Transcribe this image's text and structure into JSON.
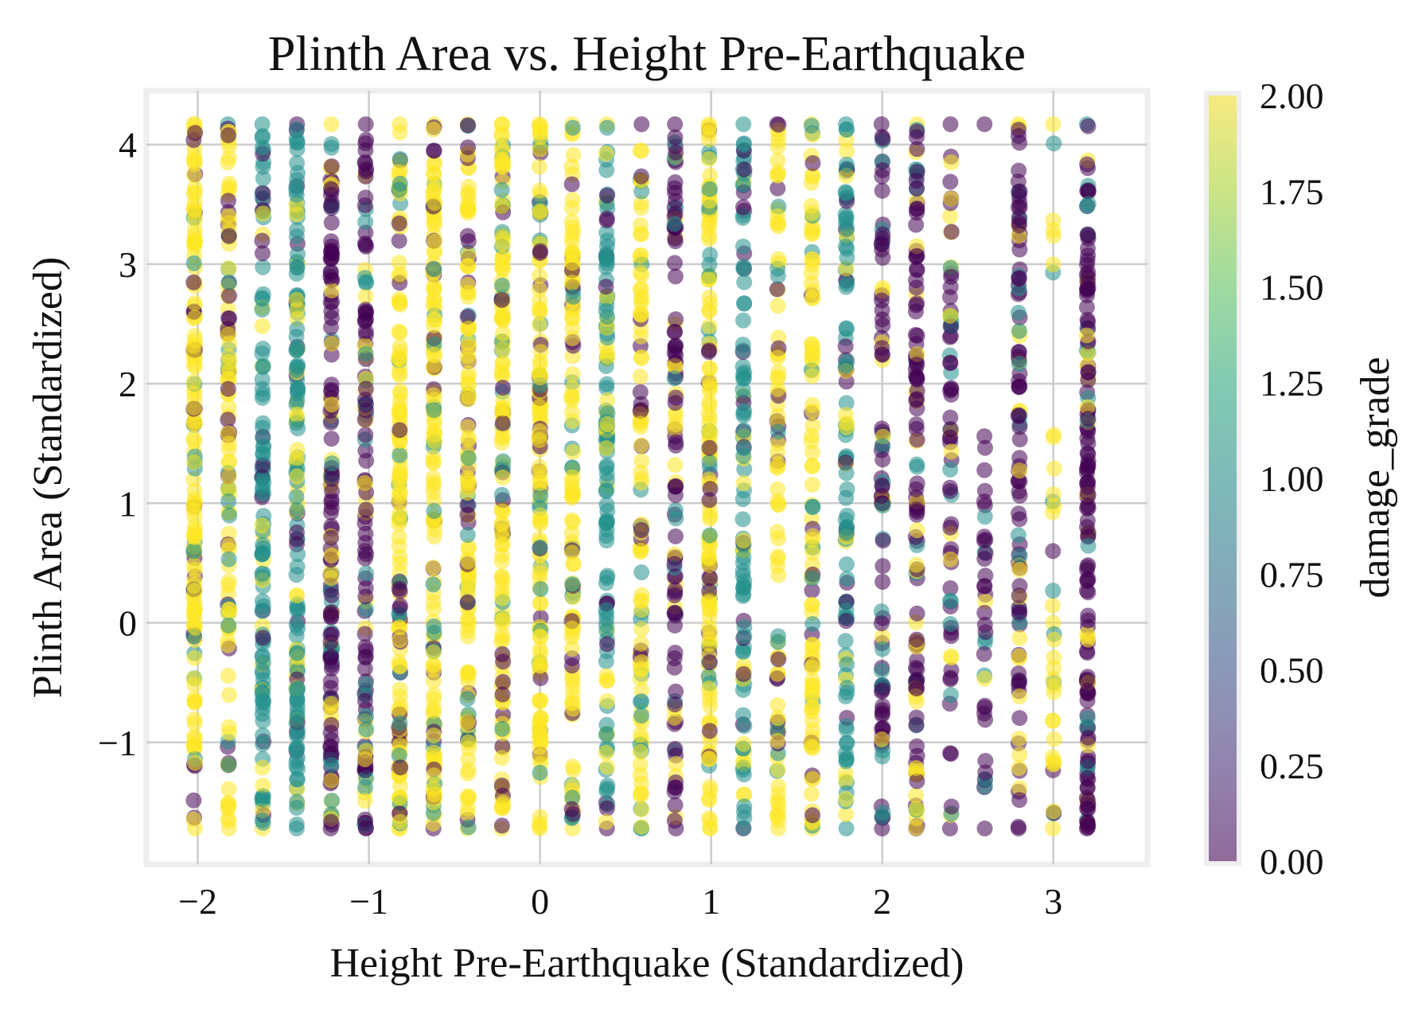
{
  "chart_data": {
    "type": "scatter",
    "title": "Plinth Area vs. Height Pre-Earthquake",
    "xlabel": "Height Pre-Earthquake (Standardized)",
    "ylabel": "Plinth Area (Standardized)",
    "xlim": [
      -2.3,
      3.55
    ],
    "ylim": [
      -2.02,
      4.45
    ],
    "xticks": [
      -2,
      -1,
      0,
      1,
      2,
      3
    ],
    "xtick_labels": [
      "−2",
      "−1",
      "0",
      "1",
      "2",
      "3"
    ],
    "yticks": [
      -1,
      0,
      1,
      2,
      3,
      4
    ],
    "ytick_labels": [
      "−1",
      "0",
      "1",
      "2",
      "3",
      "4"
    ],
    "grid": true,
    "alpha": 0.55,
    "colormap": "viridis",
    "colorbar": {
      "label": "damage_grade",
      "range": [
        0,
        2
      ],
      "ticks": [
        0,
        0.25,
        0.5,
        0.75,
        1,
        1.25,
        1.5,
        1.75,
        2
      ],
      "tick_labels": [
        "0.00",
        "0.25",
        "0.50",
        "0.75",
        "1.00",
        "1.25",
        "1.50",
        "1.75",
        "2.00"
      ]
    },
    "x_levels": [
      -2.02,
      -1.82,
      -1.62,
      -1.42,
      -1.22,
      -1.02,
      -0.82,
      -0.62,
      -0.42,
      -0.22,
      0.0,
      0.19,
      0.39,
      0.59,
      0.79,
      0.99,
      1.19,
      1.39,
      1.59,
      1.79,
      2.0,
      2.2,
      2.4,
      2.6,
      2.8,
      3.0,
      3.2
    ],
    "y_range": [
      -1.72,
      4.17
    ],
    "dominant_grade_by_column": [
      2,
      2,
      1,
      1,
      0,
      0,
      2,
      2,
      2,
      2,
      2,
      2,
      1,
      2,
      0,
      2,
      1,
      2,
      2,
      1,
      0,
      0,
      0,
      0,
      0,
      2,
      0
    ],
    "point_density_by_column": [
      1.0,
      0.8,
      0.8,
      1.0,
      1.0,
      0.8,
      1.0,
      1.0,
      0.9,
      1.0,
      1.0,
      0.8,
      0.8,
      0.7,
      0.7,
      1.0,
      0.7,
      0.6,
      0.7,
      0.7,
      0.6,
      0.8,
      0.5,
      0.25,
      0.7,
      0.25,
      1.0
    ]
  }
}
